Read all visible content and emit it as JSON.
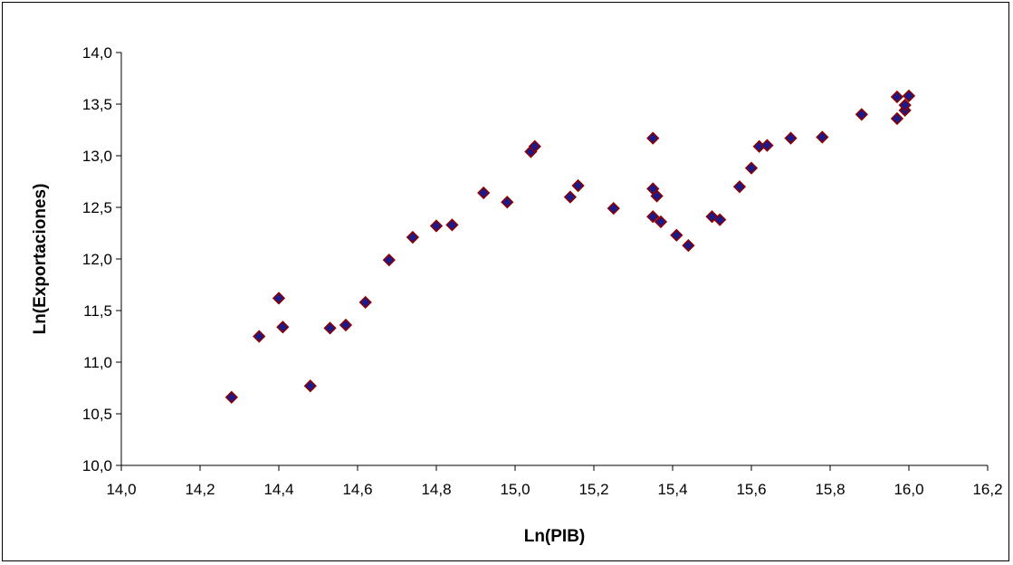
{
  "chart_data": {
    "type": "scatter",
    "title": "",
    "xlabel": "Ln(PIB)",
    "ylabel": "Ln(Exportaciones)",
    "xlim": [
      14.0,
      16.2
    ],
    "ylim": [
      10.0,
      14.0
    ],
    "x_ticks": [
      "14,0",
      "14,2",
      "14,4",
      "14,6",
      "14,8",
      "15,0",
      "15,2",
      "15,4",
      "15,6",
      "15,8",
      "16,0",
      "16,2"
    ],
    "y_ticks": [
      "14,0",
      "13,5",
      "13,0",
      "12,5",
      "12,0",
      "11,5",
      "11,0",
      "10,5",
      "10,0"
    ],
    "grid": false,
    "legend": "none",
    "marker": "diamond",
    "marker_fill": "#1a1a8c",
    "marker_edge": "#8b0000",
    "points": [
      {
        "x": 14.28,
        "y": 10.66
      },
      {
        "x": 14.35,
        "y": 11.25
      },
      {
        "x": 14.4,
        "y": 11.62
      },
      {
        "x": 14.41,
        "y": 11.34
      },
      {
        "x": 14.48,
        "y": 10.77
      },
      {
        "x": 14.53,
        "y": 11.33
      },
      {
        "x": 14.57,
        "y": 11.36
      },
      {
        "x": 14.62,
        "y": 11.58
      },
      {
        "x": 14.68,
        "y": 11.99
      },
      {
        "x": 14.74,
        "y": 12.21
      },
      {
        "x": 14.8,
        "y": 12.32
      },
      {
        "x": 14.84,
        "y": 12.33
      },
      {
        "x": 14.92,
        "y": 12.64
      },
      {
        "x": 14.98,
        "y": 12.55
      },
      {
        "x": 15.04,
        "y": 13.04
      },
      {
        "x": 15.05,
        "y": 13.09
      },
      {
        "x": 15.14,
        "y": 12.6
      },
      {
        "x": 15.16,
        "y": 12.71
      },
      {
        "x": 15.25,
        "y": 12.49
      },
      {
        "x": 15.35,
        "y": 13.17
      },
      {
        "x": 15.35,
        "y": 12.41
      },
      {
        "x": 15.35,
        "y": 12.68
      },
      {
        "x": 15.36,
        "y": 12.61
      },
      {
        "x": 15.37,
        "y": 12.36
      },
      {
        "x": 15.41,
        "y": 12.23
      },
      {
        "x": 15.44,
        "y": 12.13
      },
      {
        "x": 15.5,
        "y": 12.41
      },
      {
        "x": 15.52,
        "y": 12.38
      },
      {
        "x": 15.57,
        "y": 12.7
      },
      {
        "x": 15.6,
        "y": 12.88
      },
      {
        "x": 15.62,
        "y": 13.09
      },
      {
        "x": 15.64,
        "y": 13.1
      },
      {
        "x": 15.7,
        "y": 13.17
      },
      {
        "x": 15.78,
        "y": 13.18
      },
      {
        "x": 15.88,
        "y": 13.4
      },
      {
        "x": 15.97,
        "y": 13.36
      },
      {
        "x": 15.97,
        "y": 13.57
      },
      {
        "x": 15.99,
        "y": 13.44
      },
      {
        "x": 15.99,
        "y": 13.49
      },
      {
        "x": 16.0,
        "y": 13.58
      }
    ]
  }
}
